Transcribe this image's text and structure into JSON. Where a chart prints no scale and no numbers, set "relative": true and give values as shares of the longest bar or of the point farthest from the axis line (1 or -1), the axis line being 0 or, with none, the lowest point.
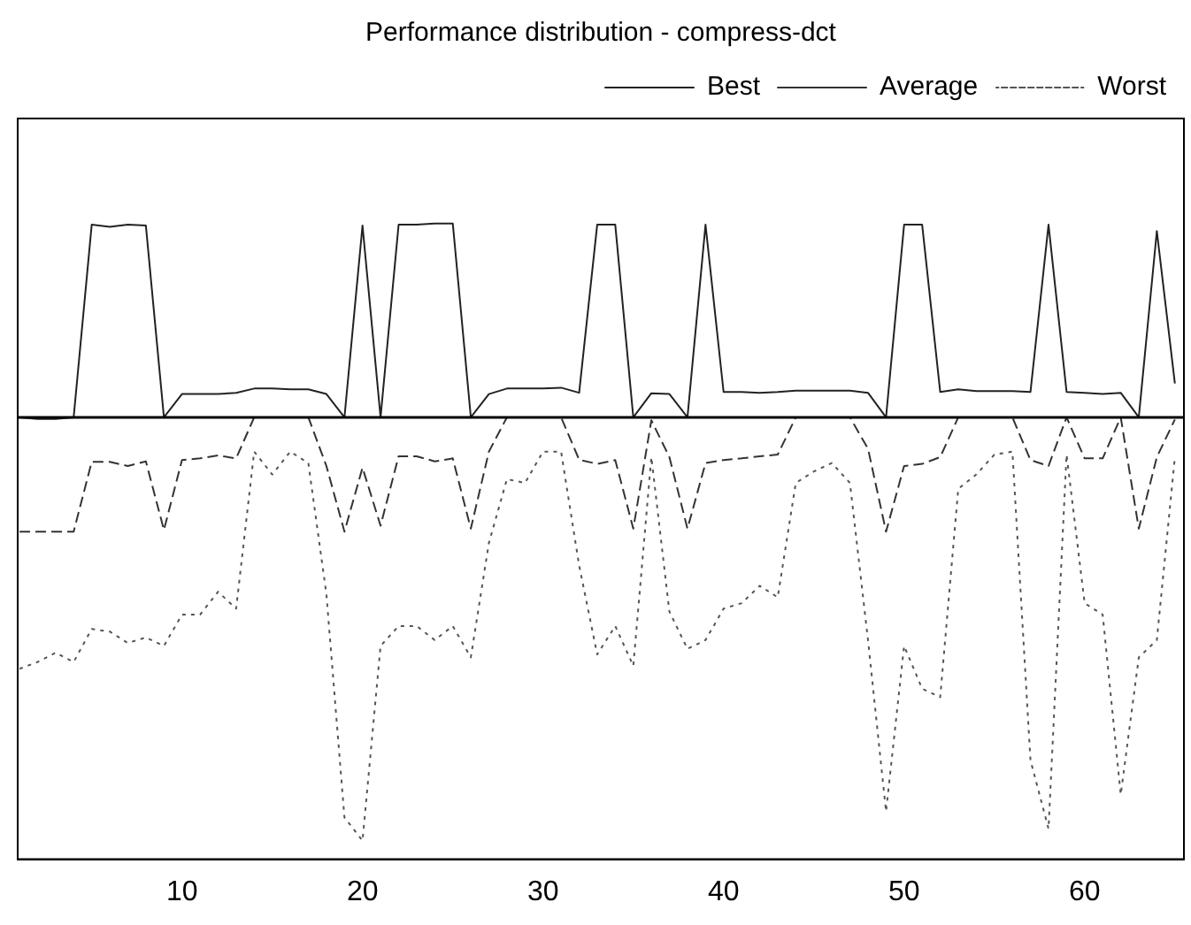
{
  "chart_data": {
    "type": "line",
    "title": "Performance distribution - compress-dct",
    "relative": true,
    "x": [
      1,
      2,
      3,
      4,
      5,
      6,
      7,
      8,
      9,
      10,
      11,
      12,
      13,
      14,
      15,
      16,
      17,
      18,
      19,
      20,
      21,
      22,
      23,
      24,
      25,
      26,
      27,
      28,
      29,
      30,
      31,
      32,
      33,
      34,
      35,
      36,
      37,
      38,
      39,
      40,
      41,
      42,
      43,
      44,
      45,
      46,
      47,
      48,
      49,
      50,
      51,
      52,
      53,
      54,
      55,
      56,
      57,
      58,
      59,
      60,
      61,
      62,
      63,
      64,
      65
    ],
    "xlim": [
      0.9,
      65.5
    ],
    "xticks": [
      10,
      20,
      30,
      40,
      50,
      60
    ],
    "legend": "top right",
    "marker": "none",
    "grid": false,
    "series": [
      {
        "name": "Best",
        "color": "#222222",
        "line_style": "solid",
        "values": [
          0,
          -0.004,
          -0.004,
          0,
          0.455,
          0.45,
          0.455,
          0.453,
          0,
          0.055,
          0.055,
          0.055,
          0.058,
          0.068,
          0.068,
          0.066,
          0.066,
          0.055,
          0,
          0.453,
          0,
          0.455,
          0.455,
          0.458,
          0.458,
          0,
          0.055,
          0.068,
          0.068,
          0.068,
          0.07,
          0.058,
          0.455,
          0.455,
          0,
          0.057,
          0.055,
          0,
          0.455,
          0.06,
          0.06,
          0.058,
          0.06,
          0.063,
          0.063,
          0.063,
          0.063,
          0.058,
          0,
          0.455,
          0.455,
          0.06,
          0.066,
          0.062,
          0.062,
          0.062,
          0.06,
          0.455,
          0.06,
          0.058,
          0.055,
          0.058,
          0,
          0.44,
          0.08
        ]
      },
      {
        "name": "Average",
        "color": "#333333",
        "line_style": "dashed",
        "values": [
          -0.27,
          -0.27,
          -0.27,
          -0.27,
          -0.105,
          -0.105,
          -0.115,
          -0.104,
          -0.266,
          -0.101,
          -0.097,
          -0.09,
          -0.097,
          0,
          0,
          0,
          0,
          -0.115,
          -0.27,
          -0.119,
          -0.256,
          -0.092,
          -0.092,
          -0.104,
          -0.097,
          -0.263,
          -0.081,
          0,
          0,
          0,
          0,
          -0.1,
          -0.11,
          -0.101,
          -0.263,
          -0.007,
          -0.094,
          -0.263,
          -0.108,
          -0.101,
          -0.097,
          -0.092,
          -0.088,
          0,
          0,
          0,
          0,
          -0.074,
          -0.27,
          -0.115,
          -0.11,
          -0.094,
          0,
          0,
          0,
          0,
          -0.101,
          -0.115,
          0,
          -0.097,
          -0.097,
          0,
          -0.263,
          -0.094,
          -0.005
        ]
      },
      {
        "name": "Worst",
        "color": "#555555",
        "line_style": "dotted",
        "values": [
          -0.594,
          -0.578,
          -0.556,
          -0.578,
          -0.5,
          -0.506,
          -0.533,
          -0.52,
          -0.54,
          -0.466,
          -0.466,
          -0.412,
          -0.452,
          -0.081,
          -0.135,
          -0.081,
          -0.108,
          -0.418,
          -0.945,
          -1,
          -0.54,
          -0.493,
          -0.493,
          -0.526,
          -0.493,
          -0.567,
          -0.297,
          -0.146,
          -0.155,
          -0.081,
          -0.081,
          -0.35,
          -0.56,
          -0.493,
          -0.587,
          -0.094,
          -0.459,
          -0.547,
          -0.526,
          -0.452,
          -0.439,
          -0.398,
          -0.425,
          -0.155,
          -0.128,
          -0.108,
          -0.155,
          -0.526,
          -0.931,
          -0.54,
          -0.641,
          -0.661,
          -0.169,
          -0.135,
          -0.088,
          -0.081,
          -0.81,
          -0.972,
          -0.088,
          -0.439,
          -0.466,
          -0.891,
          -0.567,
          -0.526,
          -0.094
        ]
      }
    ]
  }
}
